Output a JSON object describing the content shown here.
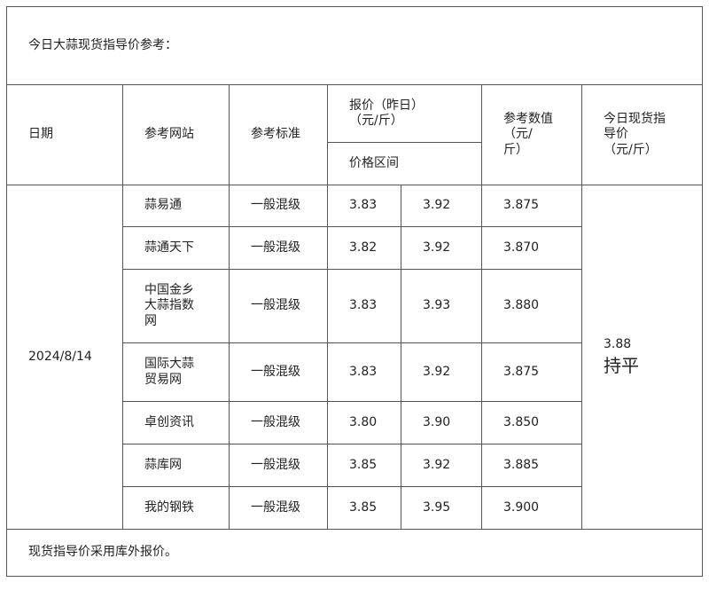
{
  "title": "今日大蒜现货指导价参考：",
  "headers": {
    "date": "日期",
    "site": "参考网站",
    "standard": "参考标准",
    "price_yesterday": "报价（昨日）\n（元/斤）",
    "price_range": "价格区间",
    "ref_value": "参考数值\n（元/\n斤）",
    "today_guide": "今日现货指\n导价\n（元/斤）"
  },
  "date": "2024/8/14",
  "today": {
    "price": "3.88",
    "trend": "持平"
  },
  "rows": [
    {
      "site": "蒜易通",
      "standard": "一般混级",
      "low": "3.83",
      "high": "3.92",
      "ref": "3.875"
    },
    {
      "site": "蒜通天下",
      "standard": "一般混级",
      "low": "3.82",
      "high": "3.92",
      "ref": "3.870"
    },
    {
      "site": "中国金乡\n大蒜指数\n网",
      "standard": "一般混级",
      "low": "3.83",
      "high": "3.93",
      "ref": "3.880"
    },
    {
      "site": "国际大蒜\n贸易网",
      "standard": "一般混级",
      "low": "3.83",
      "high": "3.92",
      "ref": "3.875"
    },
    {
      "site": "卓创资讯",
      "standard": "一般混级",
      "low": "3.80",
      "high": "3.90",
      "ref": "3.850"
    },
    {
      "site": "蒜库网",
      "standard": "一般混级",
      "low": "3.85",
      "high": "3.92",
      "ref": "3.885"
    },
    {
      "site": "我的钢铁",
      "standard": "一般混级",
      "low": "3.85",
      "high": "3.95",
      "ref": "3.900"
    }
  ],
  "footer": "现货指导价采用库外报价。"
}
